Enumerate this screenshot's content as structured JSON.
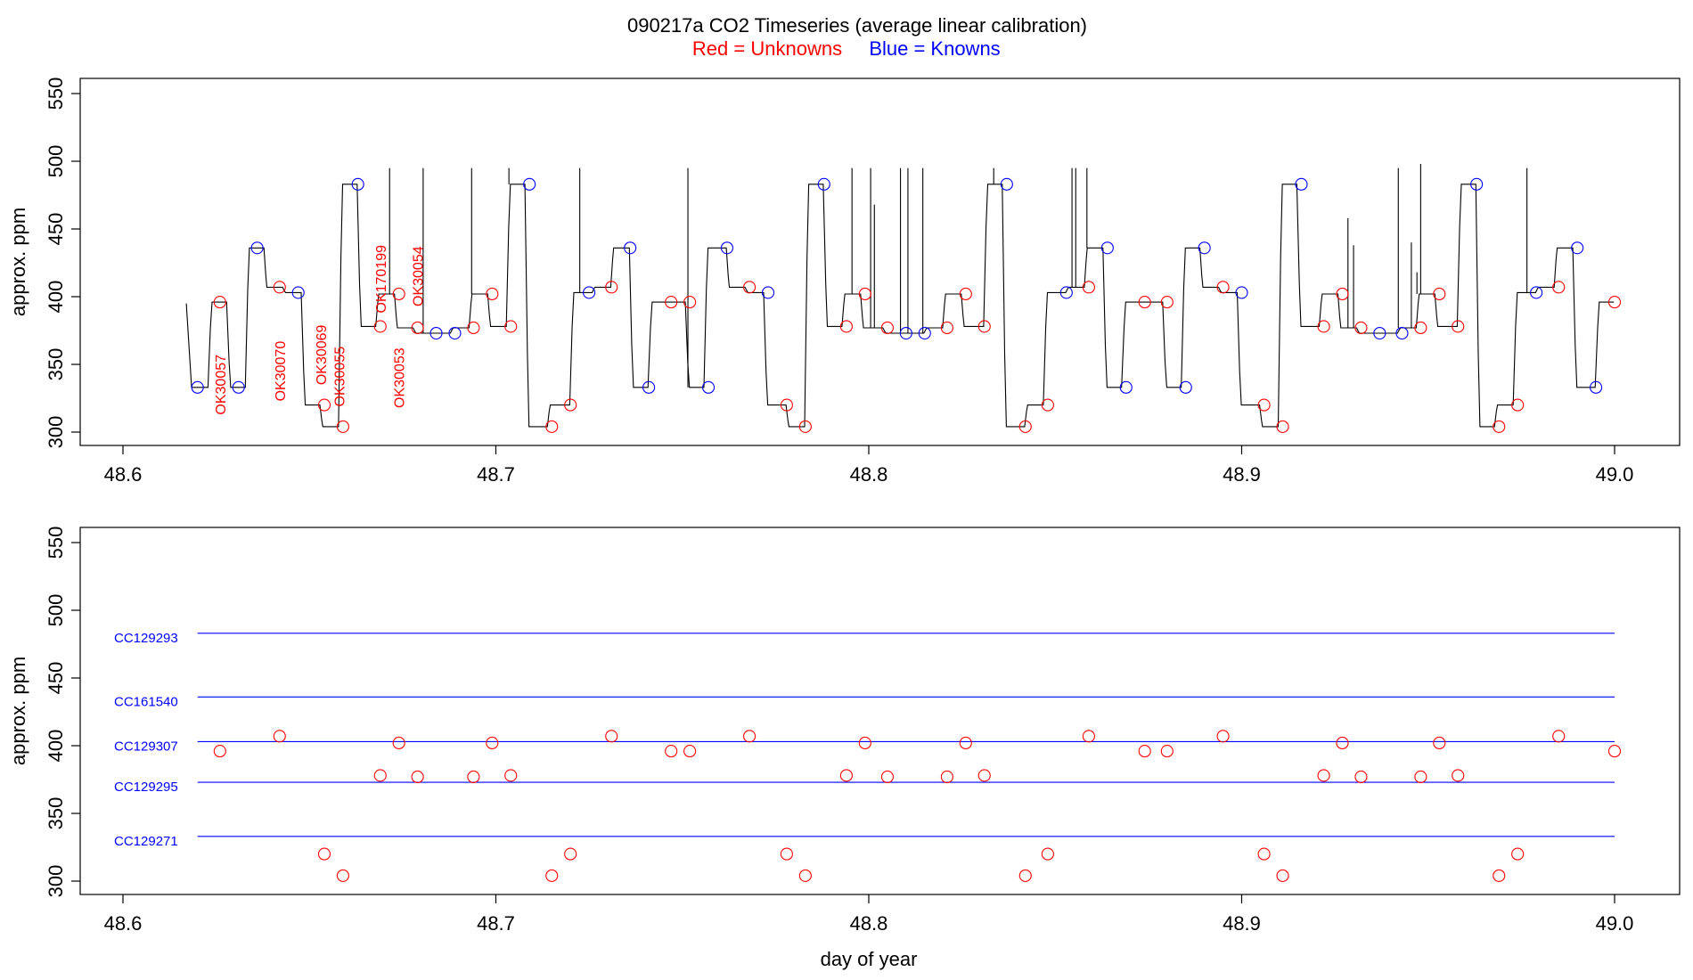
{
  "title": {
    "main": "090217a   CO2 Timeseries (average linear calibration)",
    "red_label": "Red = Unknowns",
    "blue_label": "Blue = Knowns"
  },
  "colors": {
    "unknown": "#ff0000",
    "known": "#0000ff",
    "trace": "#000000",
    "frame": "#000000"
  },
  "chart_data": [
    {
      "type": "line",
      "panel": "top",
      "ylabel": "approx. ppm",
      "xlabel": "",
      "xlim": [
        48.6,
        49.0
      ],
      "ylim": [
        300,
        550
      ],
      "x_ticks": [
        "48.6",
        "48.7",
        "48.8",
        "48.9",
        "49.0"
      ],
      "y_ticks": [
        "300",
        "350",
        "400",
        "450",
        "500",
        "550"
      ],
      "trace_start": {
        "x": 48.617,
        "y": 395
      },
      "trace_segments": [
        [
          48.618,
          48.623,
          333
        ],
        [
          48.623,
          48.628,
          396
        ],
        [
          48.628,
          48.633,
          333
        ],
        [
          48.633,
          48.638,
          436
        ],
        [
          48.638,
          48.643,
          407
        ],
        [
          48.643,
          48.648,
          403
        ],
        [
          48.648,
          48.653,
          320
        ],
        [
          48.653,
          48.658,
          304
        ],
        [
          48.658,
          48.663,
          483
        ],
        [
          48.663,
          48.668,
          378
        ],
        [
          48.668,
          48.673,
          402
        ],
        [
          48.673,
          48.678,
          377
        ],
        [
          48.678,
          48.688,
          373
        ],
        [
          48.688,
          48.693,
          377
        ],
        [
          48.693,
          48.698,
          402
        ],
        [
          48.698,
          48.703,
          378
        ],
        [
          48.703,
          48.708,
          483
        ],
        [
          48.708,
          48.714,
          304
        ],
        [
          48.714,
          48.72,
          320
        ],
        [
          48.72,
          48.726,
          403
        ],
        [
          48.726,
          48.731,
          407
        ],
        [
          48.731,
          48.736,
          436
        ],
        [
          48.736,
          48.741,
          333
        ],
        [
          48.741,
          48.751,
          396
        ],
        [
          48.751,
          48.756,
          333
        ],
        [
          48.756,
          48.762,
          436
        ],
        [
          48.762,
          48.767,
          407
        ],
        [
          48.767,
          48.772,
          403
        ],
        [
          48.772,
          48.778,
          320
        ],
        [
          48.778,
          48.783,
          304
        ],
        [
          48.783,
          48.788,
          483
        ],
        [
          48.788,
          48.793,
          378
        ],
        [
          48.793,
          48.798,
          402
        ],
        [
          48.798,
          48.804,
          377
        ],
        [
          48.804,
          48.815,
          373
        ],
        [
          48.815,
          48.82,
          377
        ],
        [
          48.82,
          48.825,
          402
        ],
        [
          48.825,
          48.831,
          378
        ],
        [
          48.831,
          48.836,
          483
        ],
        [
          48.836,
          48.842,
          304
        ],
        [
          48.842,
          48.847,
          320
        ],
        [
          48.847,
          48.853,
          403
        ],
        [
          48.853,
          48.858,
          407
        ],
        [
          48.858,
          48.863,
          436
        ],
        [
          48.863,
          48.868,
          333
        ],
        [
          48.868,
          48.879,
          396
        ],
        [
          48.879,
          48.884,
          333
        ],
        [
          48.884,
          48.889,
          436
        ],
        [
          48.889,
          48.894,
          407
        ],
        [
          48.894,
          48.899,
          403
        ],
        [
          48.899,
          48.905,
          320
        ],
        [
          48.905,
          48.91,
          304
        ],
        [
          48.91,
          48.915,
          483
        ],
        [
          48.915,
          48.921,
          378
        ],
        [
          48.921,
          48.926,
          402
        ],
        [
          48.926,
          48.931,
          377
        ],
        [
          48.931,
          48.942,
          373
        ],
        [
          48.942,
          48.947,
          377
        ],
        [
          48.947,
          48.952,
          402
        ],
        [
          48.952,
          48.958,
          378
        ],
        [
          48.958,
          48.963,
          483
        ],
        [
          48.963,
          48.968,
          304
        ],
        [
          48.968,
          48.973,
          320
        ],
        [
          48.973,
          48.979,
          403
        ],
        [
          48.979,
          48.984,
          407
        ],
        [
          48.984,
          48.989,
          436
        ],
        [
          48.989,
          48.995,
          333
        ],
        [
          48.995,
          49.0,
          396
        ]
      ],
      "spikes": [
        [
          48.6715,
          495
        ],
        [
          48.6805,
          495
        ],
        [
          48.6935,
          495
        ],
        [
          48.7035,
          495
        ],
        [
          48.7225,
          495
        ],
        [
          48.7515,
          495
        ],
        [
          48.7955,
          495
        ],
        [
          48.8005,
          495
        ],
        [
          48.8015,
          468
        ],
        [
          48.8085,
          495
        ],
        [
          48.8105,
          495
        ],
        [
          48.8145,
          495
        ],
        [
          48.8335,
          495
        ],
        [
          48.8545,
          495
        ],
        [
          48.8555,
          495
        ],
        [
          48.8585,
          495
        ],
        [
          48.9285,
          458
        ],
        [
          48.93,
          438
        ],
        [
          48.942,
          495
        ],
        [
          48.9455,
          440
        ],
        [
          48.947,
          418
        ],
        [
          48.948,
          498
        ],
        [
          48.9765,
          495
        ]
      ],
      "unknowns": [
        {
          "x": 48.626,
          "y": 396
        },
        {
          "x": 48.642,
          "y": 407
        },
        {
          "x": 48.654,
          "y": 320
        },
        {
          "x": 48.659,
          "y": 304
        },
        {
          "x": 48.669,
          "y": 378
        },
        {
          "x": 48.674,
          "y": 402
        },
        {
          "x": 48.679,
          "y": 377
        },
        {
          "x": 48.694,
          "y": 377
        },
        {
          "x": 48.699,
          "y": 402
        },
        {
          "x": 48.704,
          "y": 378
        },
        {
          "x": 48.715,
          "y": 304
        },
        {
          "x": 48.72,
          "y": 320
        },
        {
          "x": 48.731,
          "y": 407
        },
        {
          "x": 48.747,
          "y": 396
        },
        {
          "x": 48.752,
          "y": 396
        },
        {
          "x": 48.768,
          "y": 407
        },
        {
          "x": 48.778,
          "y": 320
        },
        {
          "x": 48.783,
          "y": 304
        },
        {
          "x": 48.794,
          "y": 378
        },
        {
          "x": 48.799,
          "y": 402
        },
        {
          "x": 48.805,
          "y": 377
        },
        {
          "x": 48.821,
          "y": 377
        },
        {
          "x": 48.826,
          "y": 402
        },
        {
          "x": 48.831,
          "y": 378
        },
        {
          "x": 48.842,
          "y": 304
        },
        {
          "x": 48.848,
          "y": 320
        },
        {
          "x": 48.859,
          "y": 407
        },
        {
          "x": 48.874,
          "y": 396
        },
        {
          "x": 48.88,
          "y": 396
        },
        {
          "x": 48.895,
          "y": 407
        },
        {
          "x": 48.906,
          "y": 320
        },
        {
          "x": 48.911,
          "y": 304
        },
        {
          "x": 48.922,
          "y": 378
        },
        {
          "x": 48.927,
          "y": 402
        },
        {
          "x": 48.932,
          "y": 377
        },
        {
          "x": 48.948,
          "y": 377
        },
        {
          "x": 48.953,
          "y": 402
        },
        {
          "x": 48.958,
          "y": 378
        },
        {
          "x": 48.969,
          "y": 304
        },
        {
          "x": 48.974,
          "y": 320
        },
        {
          "x": 48.985,
          "y": 407
        },
        {
          "x": 49.0,
          "y": 396
        }
      ],
      "knowns": [
        {
          "x": 48.62,
          "y": 333
        },
        {
          "x": 48.631,
          "y": 333
        },
        {
          "x": 48.636,
          "y": 436
        },
        {
          "x": 48.647,
          "y": 403
        },
        {
          "x": 48.663,
          "y": 483
        },
        {
          "x": 48.684,
          "y": 373
        },
        {
          "x": 48.689,
          "y": 373
        },
        {
          "x": 48.709,
          "y": 483
        },
        {
          "x": 48.725,
          "y": 403
        },
        {
          "x": 48.736,
          "y": 436
        },
        {
          "x": 48.741,
          "y": 333
        },
        {
          "x": 48.757,
          "y": 333
        },
        {
          "x": 48.762,
          "y": 436
        },
        {
          "x": 48.773,
          "y": 403
        },
        {
          "x": 48.788,
          "y": 483
        },
        {
          "x": 48.81,
          "y": 373
        },
        {
          "x": 48.815,
          "y": 373
        },
        {
          "x": 48.837,
          "y": 483
        },
        {
          "x": 48.853,
          "y": 403
        },
        {
          "x": 48.864,
          "y": 436
        },
        {
          "x": 48.869,
          "y": 333
        },
        {
          "x": 48.885,
          "y": 333
        },
        {
          "x": 48.89,
          "y": 436
        },
        {
          "x": 48.9,
          "y": 403
        },
        {
          "x": 48.916,
          "y": 483
        },
        {
          "x": 48.937,
          "y": 373
        },
        {
          "x": 48.943,
          "y": 373
        },
        {
          "x": 48.963,
          "y": 483
        },
        {
          "x": 48.979,
          "y": 403
        },
        {
          "x": 48.99,
          "y": 436
        },
        {
          "x": 48.995,
          "y": 333
        }
      ],
      "sample_labels": [
        {
          "text": "OK30057",
          "x": 48.626,
          "y": 335
        },
        {
          "text": "OK30070",
          "x": 48.642,
          "y": 345
        },
        {
          "text": "OK30069",
          "x": 48.653,
          "y": 357
        },
        {
          "text": "OK30055",
          "x": 48.658,
          "y": 341
        },
        {
          "text": "OK170199",
          "x": 48.669,
          "y": 413
        },
        {
          "text": "OK30053",
          "x": 48.674,
          "y": 340
        },
        {
          "text": "OK30054",
          "x": 48.679,
          "y": 415
        }
      ]
    },
    {
      "type": "scatter",
      "panel": "bottom",
      "ylabel": "approx. ppm",
      "xlabel": "day of year",
      "xlim": [
        48.6,
        49.0
      ],
      "ylim": [
        300,
        550
      ],
      "x_ticks": [
        "48.6",
        "48.7",
        "48.8",
        "48.9",
        "49.0"
      ],
      "y_ticks": [
        "300",
        "350",
        "400",
        "450",
        "500",
        "550"
      ],
      "standards": [
        {
          "name": "CC129293",
          "value": 483
        },
        {
          "name": "CC161540",
          "value": 436
        },
        {
          "name": "CC129307",
          "value": 403
        },
        {
          "name": "CC129295",
          "value": 373
        },
        {
          "name": "CC129271",
          "value": 333
        }
      ],
      "standards_x_range": [
        48.62,
        49.0
      ],
      "unknowns": [
        {
          "x": 48.626,
          "y": 396
        },
        {
          "x": 48.642,
          "y": 407
        },
        {
          "x": 48.654,
          "y": 320
        },
        {
          "x": 48.659,
          "y": 304
        },
        {
          "x": 48.669,
          "y": 378
        },
        {
          "x": 48.674,
          "y": 402
        },
        {
          "x": 48.679,
          "y": 377
        },
        {
          "x": 48.694,
          "y": 377
        },
        {
          "x": 48.699,
          "y": 402
        },
        {
          "x": 48.704,
          "y": 378
        },
        {
          "x": 48.715,
          "y": 304
        },
        {
          "x": 48.72,
          "y": 320
        },
        {
          "x": 48.731,
          "y": 407
        },
        {
          "x": 48.747,
          "y": 396
        },
        {
          "x": 48.752,
          "y": 396
        },
        {
          "x": 48.768,
          "y": 407
        },
        {
          "x": 48.778,
          "y": 320
        },
        {
          "x": 48.783,
          "y": 304
        },
        {
          "x": 48.794,
          "y": 378
        },
        {
          "x": 48.799,
          "y": 402
        },
        {
          "x": 48.805,
          "y": 377
        },
        {
          "x": 48.821,
          "y": 377
        },
        {
          "x": 48.826,
          "y": 402
        },
        {
          "x": 48.831,
          "y": 378
        },
        {
          "x": 48.842,
          "y": 304
        },
        {
          "x": 48.848,
          "y": 320
        },
        {
          "x": 48.859,
          "y": 407
        },
        {
          "x": 48.874,
          "y": 396
        },
        {
          "x": 48.88,
          "y": 396
        },
        {
          "x": 48.895,
          "y": 407
        },
        {
          "x": 48.906,
          "y": 320
        },
        {
          "x": 48.911,
          "y": 304
        },
        {
          "x": 48.922,
          "y": 378
        },
        {
          "x": 48.927,
          "y": 402
        },
        {
          "x": 48.932,
          "y": 377
        },
        {
          "x": 48.948,
          "y": 377
        },
        {
          "x": 48.953,
          "y": 402
        },
        {
          "x": 48.958,
          "y": 378
        },
        {
          "x": 48.969,
          "y": 304
        },
        {
          "x": 48.974,
          "y": 320
        },
        {
          "x": 48.985,
          "y": 407
        },
        {
          "x": 49.0,
          "y": 396
        }
      ]
    }
  ]
}
